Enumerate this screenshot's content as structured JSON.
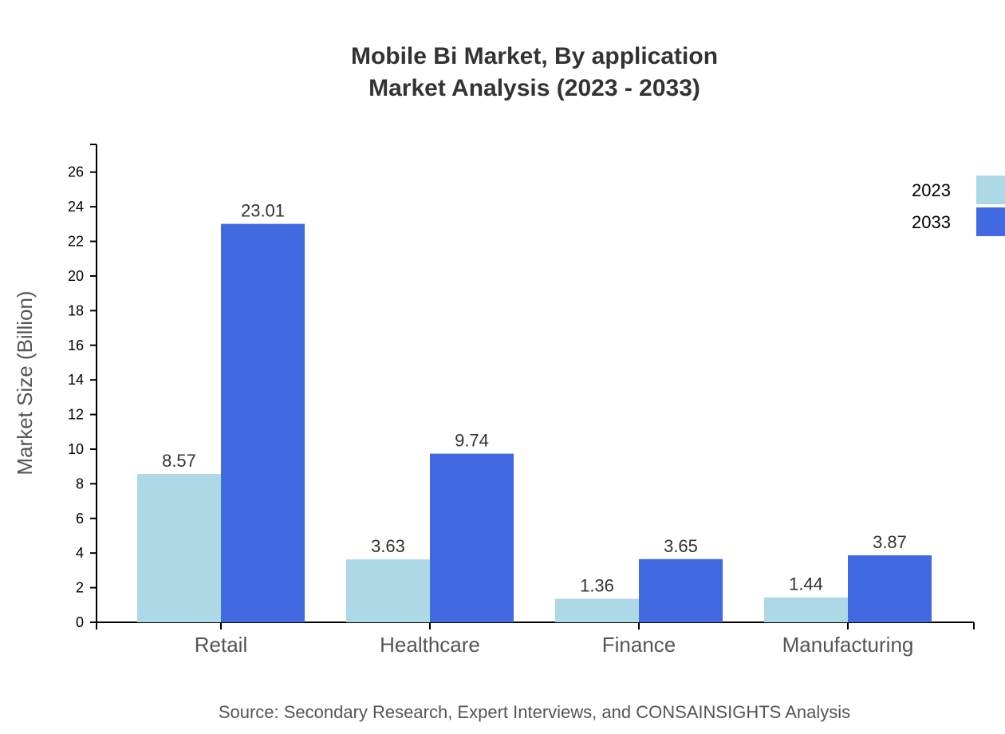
{
  "chart_data": {
    "type": "bar",
    "title": "Mobile Bi Market, By application",
    "subtitle": "Market Analysis (2023 - 2033)",
    "xlabel": "",
    "ylabel": "Market Size (Billion)",
    "categories": [
      "Retail",
      "Healthcare",
      "Finance",
      "Manufacturing"
    ],
    "series": [
      {
        "name": "2023",
        "values": [
          8.57,
          3.63,
          1.36,
          1.44
        ],
        "color": "#add8e6"
      },
      {
        "name": "2033",
        "values": [
          23.01,
          9.74,
          3.65,
          3.87
        ],
        "color": "#4169e1"
      }
    ],
    "ylim": [
      0,
      27.6
    ],
    "yticks": [
      0,
      2,
      4,
      6,
      8,
      10,
      12,
      14,
      16,
      18,
      20,
      22,
      24,
      26
    ],
    "grid": false,
    "legend": "top-right",
    "source": "Source: Secondary Research, Expert Interviews, and CONSAINSIGHTS Analysis"
  }
}
